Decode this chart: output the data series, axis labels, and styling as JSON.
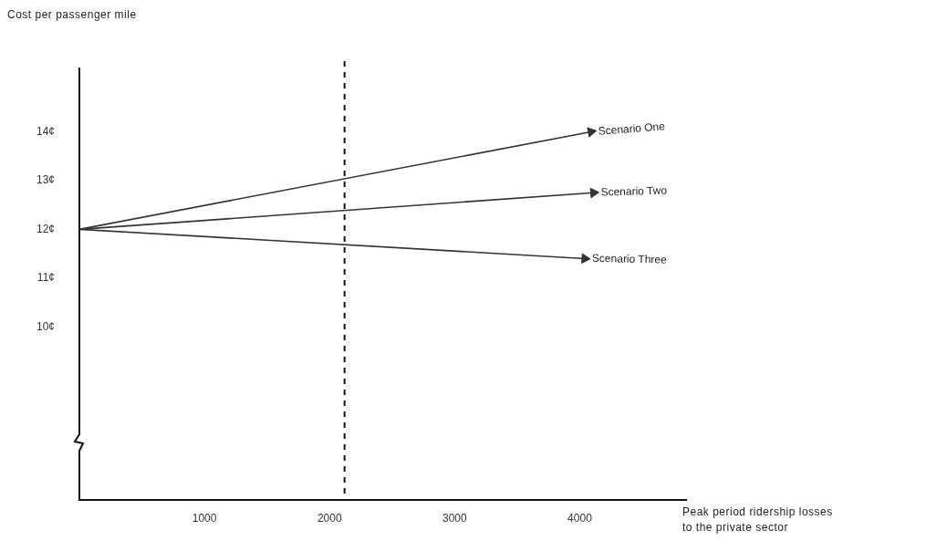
{
  "chart_data": {
    "type": "line",
    "xlabel": "Peak period ridership losses\nto the private sector",
    "ylabel": "Cost per passenger mile",
    "xlim": [
      0,
      4850
    ],
    "xticks": [
      1000,
      2000,
      3000,
      4000
    ],
    "ylim": [
      6.45,
      15.3
    ],
    "yticks": [
      {
        "value": 10,
        "label": "10¢"
      },
      {
        "value": 11,
        "label": "11¢"
      },
      {
        "value": 12,
        "label": "12¢"
      },
      {
        "value": 13,
        "label": "13¢"
      },
      {
        "value": 14,
        "label": "14¢"
      }
    ],
    "series": [
      {
        "name": "Scenario One",
        "color": "#333333",
        "x": [
          0,
          4090
        ],
        "values": [
          12,
          14
        ]
      },
      {
        "name": "Scenario Two",
        "color": "#333333",
        "x": [
          0,
          4110
        ],
        "values": [
          12,
          12.75
        ]
      },
      {
        "name": "Scenario Three",
        "color": "#333333",
        "x": [
          0,
          4040
        ],
        "values": [
          12,
          11.4
        ]
      }
    ],
    "ref_lines": [
      {
        "axis": "x",
        "value": 2120,
        "color": "#111111",
        "line_style": "dashed"
      }
    ],
    "grid": false,
    "legend": "right",
    "line_style": "solid"
  }
}
